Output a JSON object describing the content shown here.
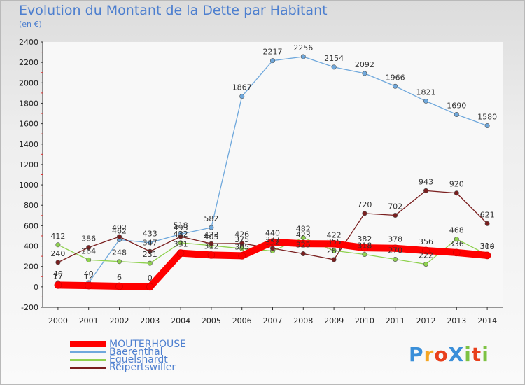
{
  "title": "Evolution du Montant de la Dette par Habitant",
  "subtitle": "(en €)",
  "logo_text": "ProXiti",
  "logo_colors": [
    "#3a8fd9",
    "#f5a623",
    "#e8401c",
    "#3a8fd9",
    "#7dc242",
    "#e8401c",
    "#7dc242"
  ],
  "chart_data": {
    "type": "line",
    "x": [
      "2000",
      "2001",
      "2002",
      "2003",
      "2004",
      "2005",
      "2006",
      "2007",
      "2008",
      "2009",
      "2010",
      "2011",
      "2012",
      "2013",
      "2014"
    ],
    "ylim": [
      -200,
      2400
    ],
    "yticks": [
      -200,
      0,
      200,
      400,
      600,
      800,
      1000,
      1200,
      1400,
      1600,
      1800,
      2000,
      2200,
      2400
    ],
    "grid": false,
    "series": [
      {
        "name": "MOUTERHOUSE",
        "color": "#ff0000",
        "values": [
          17,
          12,
          6,
          0,
          331,
          312,
          305,
          440,
          423,
          422,
          382,
          378,
          356,
          336,
          308
        ]
      },
      {
        "name": "Baerenthal",
        "color": "#6fa8dc",
        "values": [
          40,
          40,
          462,
          433,
          518,
          582,
          1867,
          2217,
          2256,
          2154,
          2092,
          1966,
          1821,
          1690,
          1580
        ]
      },
      {
        "name": "Eguelshardt",
        "color": "#8fd14f",
        "values": [
          412,
          264,
          248,
          231,
          432,
          405,
          375,
          352,
          482,
          355,
          318,
          270,
          222,
          468,
          314
        ]
      },
      {
        "name": "Reipertswiller",
        "color": "#7a1f1f",
        "values": [
          240,
          386,
          492,
          347,
          493,
          423,
          426,
          377,
          325,
          267,
          720,
          702,
          943,
          920,
          621
        ]
      }
    ]
  }
}
